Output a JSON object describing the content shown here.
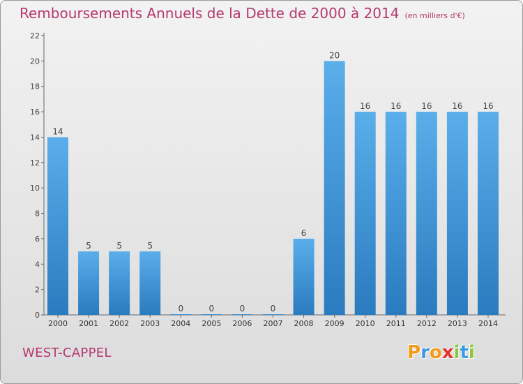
{
  "chart_data": {
    "type": "bar",
    "title": "Remboursements Annuels de la Dette de 2000 à 2014",
    "subtitle": "(en milliers d'€)",
    "categories": [
      "2000",
      "2001",
      "2002",
      "2003",
      "2004",
      "2005",
      "2006",
      "2007",
      "2008",
      "2009",
      "2010",
      "2011",
      "2012",
      "2013",
      "2014"
    ],
    "values": [
      14,
      5,
      5,
      5,
      0,
      0,
      0,
      0,
      6,
      20,
      16,
      16,
      16,
      16,
      16
    ],
    "xlabel": "",
    "ylabel": "",
    "ylim": [
      0,
      22
    ],
    "yticks": [
      0,
      2,
      4,
      6,
      8,
      10,
      12,
      14,
      16,
      18,
      20,
      22
    ],
    "grid": false,
    "colors": {
      "bar_top": "#5aaeea",
      "bar_bottom": "#2a7bbf",
      "title": "#b5386e"
    }
  },
  "commune": "WEST-CAPPEL",
  "logo": {
    "letters": [
      "P",
      "r",
      "o",
      "x",
      "i",
      "t",
      "i"
    ],
    "colors": [
      "#f39b1c",
      "#3b9be0",
      "#f39b1c",
      "#e2332c",
      "#8cc63f",
      "#3b9be0",
      "#8cc63f"
    ]
  }
}
